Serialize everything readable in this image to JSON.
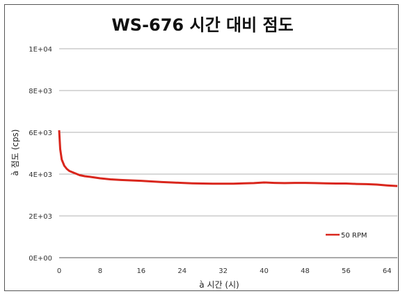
{
  "chart_data": {
    "type": "line",
    "title": "WS-676 시간 대비 점도",
    "xlabel": "à 시간 (시)",
    "ylabel": "à 점도 (cps)",
    "xlim": [
      0,
      66
    ],
    "ylim": [
      0,
      10000
    ],
    "xticks": [
      0,
      8,
      16,
      24,
      32,
      40,
      48,
      56,
      64
    ],
    "yticks": [
      0,
      2000,
      4000,
      6000,
      8000,
      10000
    ],
    "ytick_labels": [
      "0E+00",
      "2E+03",
      "4E+03",
      "6E+03",
      "8E+03",
      "1E+04"
    ],
    "grid": "horizontal",
    "legend_position": "bottom-right",
    "series": [
      {
        "name": "50 RPM",
        "color": "#d9261c",
        "x": [
          0,
          0.2,
          0.5,
          1,
          1.5,
          2,
          3,
          4,
          5,
          6,
          8,
          10,
          12,
          14,
          16,
          18,
          20,
          22,
          24,
          26,
          28,
          30,
          32,
          34,
          36,
          38,
          40,
          42,
          44,
          46,
          48,
          50,
          52,
          54,
          56,
          58,
          60,
          62,
          64,
          66
        ],
        "values": [
          6100,
          5200,
          4700,
          4400,
          4250,
          4150,
          4050,
          3950,
          3900,
          3870,
          3800,
          3750,
          3720,
          3700,
          3680,
          3650,
          3620,
          3600,
          3580,
          3560,
          3550,
          3540,
          3540,
          3540,
          3560,
          3570,
          3600,
          3580,
          3570,
          3580,
          3580,
          3570,
          3560,
          3550,
          3550,
          3530,
          3520,
          3500,
          3460,
          3430
        ]
      }
    ]
  }
}
